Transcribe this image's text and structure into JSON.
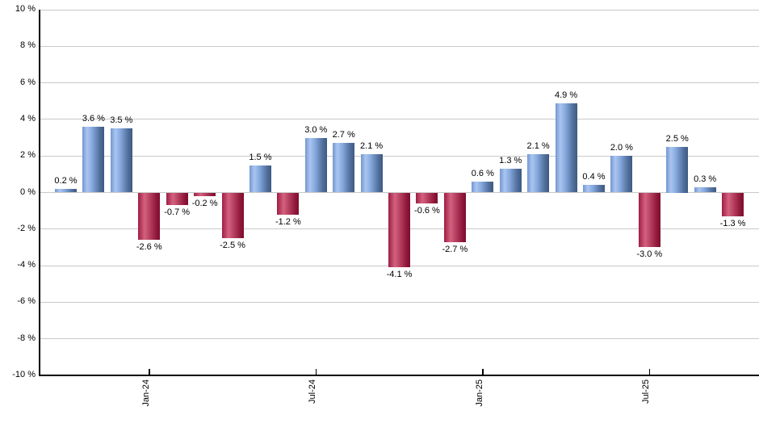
{
  "chart_data": {
    "type": "bar",
    "title": "",
    "unit_suffix": " %",
    "ylim": [
      -10,
      10
    ],
    "y_tick_step": 2,
    "grid": true,
    "legend": "none",
    "y_tick_labels": [
      "10 %",
      "8 %",
      "6 %",
      "4 %",
      "2 %",
      "0 %",
      "-2 %",
      "-4 %",
      "-6 %",
      "-8 %",
      "-10 %"
    ],
    "x_tick_labels": [
      {
        "label": "Jan-24",
        "bar_index": 3
      },
      {
        "label": "Jul-24",
        "bar_index": 9
      },
      {
        "label": "Jan-25",
        "bar_index": 15
      },
      {
        "label": "Jul-25",
        "bar_index": 21
      }
    ],
    "bars": [
      {
        "value": 0.2,
        "label": "0.2 %"
      },
      {
        "value": 3.6,
        "label": "3.6 %"
      },
      {
        "value": 3.5,
        "label": "3.5 %"
      },
      {
        "value": -2.6,
        "label": "-2.6 %"
      },
      {
        "value": -0.7,
        "label": "-0.7 %"
      },
      {
        "value": -0.2,
        "label": "-0.2 %"
      },
      {
        "value": -2.5,
        "label": "-2.5 %"
      },
      {
        "value": 1.5,
        "label": "1.5 %"
      },
      {
        "value": -1.2,
        "label": "-1.2 %"
      },
      {
        "value": 3.0,
        "label": "3.0 %"
      },
      {
        "value": 2.7,
        "label": "2.7 %"
      },
      {
        "value": 2.1,
        "label": "2.1 %"
      },
      {
        "value": -4.1,
        "label": "-4.1 %"
      },
      {
        "value": -0.6,
        "label": "-0.6 %"
      },
      {
        "value": -2.7,
        "label": "-2.7 %"
      },
      {
        "value": 0.6,
        "label": "0.6 %"
      },
      {
        "value": 1.3,
        "label": "1.3 %"
      },
      {
        "value": 2.1,
        "label": "2.1 %"
      },
      {
        "value": 4.9,
        "label": "4.9 %"
      },
      {
        "value": 0.4,
        "label": "0.4 %"
      },
      {
        "value": 2.0,
        "label": "2.0 %"
      },
      {
        "value": -3.0,
        "label": "-3.0 %"
      },
      {
        "value": 2.5,
        "label": "2.5 %"
      },
      {
        "value": 0.3,
        "label": "0.3 %"
      },
      {
        "value": -1.3,
        "label": "-1.3 %"
      }
    ],
    "colors": {
      "positive_base": "#7ba1dc",
      "positive_gradient": [
        [
          "#7497d0",
          0
        ],
        [
          "#aac5f0",
          22
        ],
        [
          "#86a9df",
          45
        ],
        [
          "#54729f",
          78
        ],
        [
          "#3d5981",
          100
        ]
      ],
      "negative_base": "#c23a60",
      "negative_gradient": [
        [
          "#9e1e44",
          0
        ],
        [
          "#d4617f",
          30
        ],
        [
          "#b53e5f",
          55
        ],
        [
          "#8e1638",
          85
        ],
        [
          "#7d0e2e",
          100
        ]
      ],
      "gridline": "#c9c9c9",
      "axis": "#000000",
      "label_text": "#000000",
      "background": "#ffffff"
    }
  }
}
